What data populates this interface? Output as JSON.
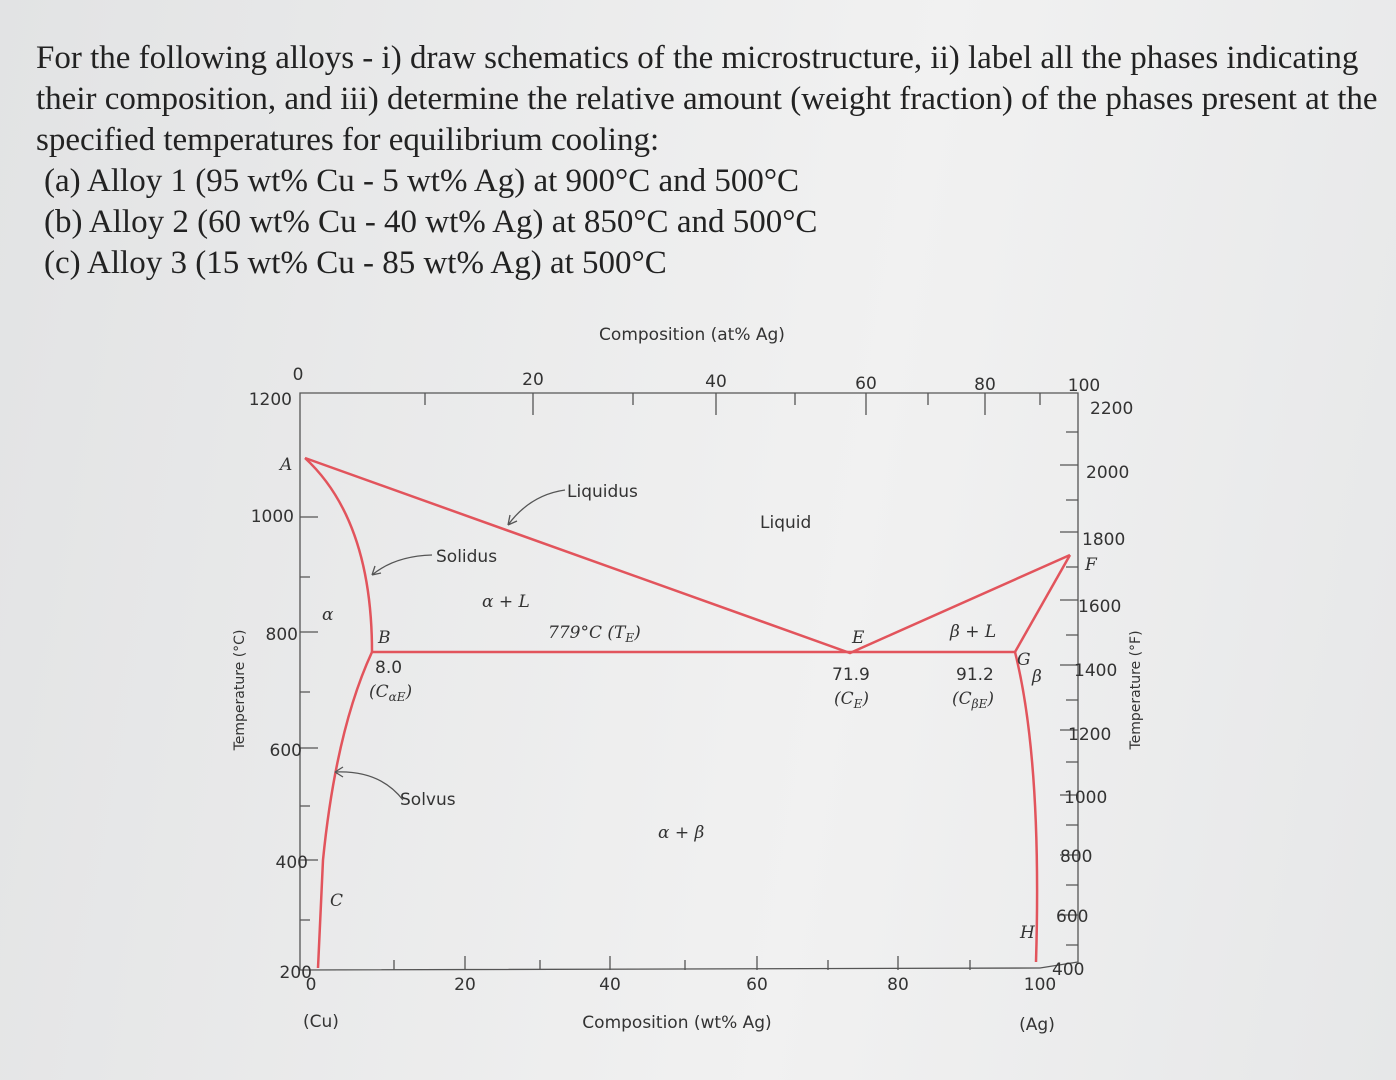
{
  "question": {
    "intro": "For the following alloys - i) draw schematics of the microstructure, ii) label all the phases indicating their composition, and iii) determine the relative amount (weight fraction) of the phases present at the specified temperatures for equilibrium cooling:",
    "items": [
      "(a) Alloy 1 (95 wt% Cu - 5 wt% Ag) at 900°C and 500°C",
      "(b) Alloy 2 (60 wt% Cu - 40 wt% Ag) at 850°C and 500°C",
      "(c) Alloy 3 (15 wt% Cu - 85 wt% Ag) at 500°C"
    ]
  },
  "diagram": {
    "top_axis_title": "Composition (at% Ag)",
    "top_ticks": [
      "0",
      "20",
      "40",
      "60",
      "80",
      "100"
    ],
    "bottom_axis_title": "Composition (wt% Ag)",
    "bottom_ticks": [
      "0",
      "20",
      "40",
      "60",
      "80",
      "100"
    ],
    "bottom_end_labels": [
      "(Cu)",
      "(Ag)"
    ],
    "left_axis_title": "Temperature (°C)",
    "left_ticks": [
      "1200",
      "1000",
      "800",
      "600",
      "400",
      "200"
    ],
    "right_axis_title": "Temperature (°F)",
    "right_ticks": [
      "2200",
      "2000",
      "1800",
      "1600",
      "1400",
      "1200",
      "1000",
      "800",
      "600",
      "400"
    ],
    "labels": {
      "A": "A",
      "liquidus": "Liquidus",
      "liquid": "Liquid",
      "solidus": "Solidus",
      "alpha_l": "α + L",
      "alpha": "α",
      "B": "B",
      "eutectic_temp": {
        "text": "779°C (T",
        "sub": "E",
        "after": ")"
      },
      "E": "E",
      "beta_l": "β + L",
      "F": "F",
      "G": "G",
      "beta": "β",
      "c_alpha_value": "8.0",
      "c_alpha": {
        "text": "(C",
        "sub": "αE",
        "after": ")"
      },
      "c_e_value": "71.9",
      "c_e": {
        "text": "(C",
        "sub": "E",
        "after": ")"
      },
      "c_beta_value": "91.2",
      "c_beta": {
        "text": "(C",
        "sub": "βE",
        "after": ")"
      },
      "solvus": "Solvus",
      "alpha_beta": "α + β",
      "C": "C",
      "H": "H"
    }
  }
}
